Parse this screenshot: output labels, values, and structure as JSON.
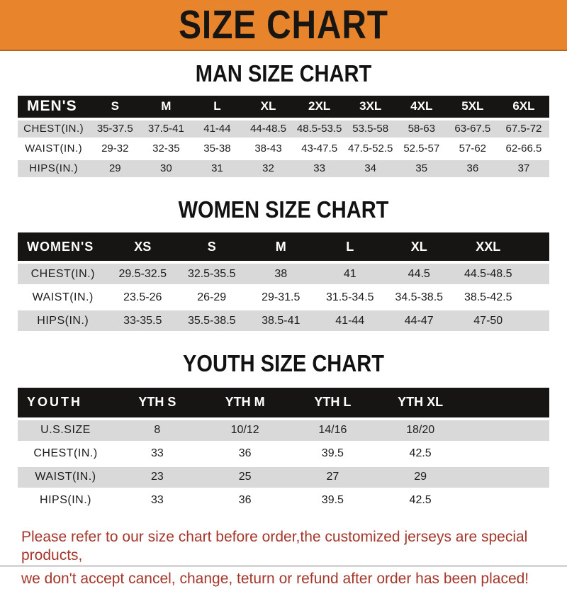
{
  "banner": {
    "title": "SIZE CHART",
    "bg_color": "#E8842C",
    "text_color": "#181613"
  },
  "sections": [
    {
      "title": "MAN SIZE CHART",
      "table": {
        "header_label": "MEN'S",
        "columns": [
          "S",
          "M",
          "L",
          "XL",
          "2XL",
          "3XL",
          "4XL",
          "5XL",
          "6XL"
        ],
        "rows": [
          {
            "label": "CHEST(IN.)",
            "values": [
              "35-37.5",
              "37.5-41",
              "41-44",
              "44-48.5",
              "48.5-53.5",
              "53.5-58",
              "58-63",
              "63-67.5",
              "67.5-72"
            ]
          },
          {
            "label": "WAIST(IN.)",
            "values": [
              "29-32",
              "32-35",
              "35-38",
              "38-43",
              "43-47.5",
              "47.5-52.5",
              "52.5-57",
              "57-62",
              "62-66.5"
            ]
          },
          {
            "label": "HIPS(IN.)",
            "values": [
              "29",
              "30",
              "31",
              "32",
              "33",
              "34",
              "35",
              "36",
              "37"
            ]
          }
        ]
      }
    },
    {
      "title": "WOMEN SIZE CHART",
      "table": {
        "header_label": "WOMEN'S",
        "columns": [
          "XS",
          "S",
          "M",
          "L",
          "XL",
          "XXL"
        ],
        "rows": [
          {
            "label": "CHEST(IN.)",
            "values": [
              "29.5-32.5",
              "32.5-35.5",
              "38",
              "41",
              "44.5",
              "44.5-48.5"
            ]
          },
          {
            "label": "WAIST(IN.)",
            "values": [
              "23.5-26",
              "26-29",
              "29-31.5",
              "31.5-34.5",
              "34.5-38.5",
              "38.5-42.5"
            ]
          },
          {
            "label": "HIPS(IN.)",
            "values": [
              "33-35.5",
              "35.5-38.5",
              "38.5-41",
              "41-44",
              "44-47",
              "47-50"
            ]
          }
        ]
      }
    },
    {
      "title": "YOUTH SIZE CHART",
      "table": {
        "header_label": "YOUTH",
        "columns": [
          "YTH S",
          "YTH M",
          "YTH L",
          "YTH XL"
        ],
        "rows": [
          {
            "label": "U.S.SIZE",
            "values": [
              "8",
              "10/12",
              "14/16",
              "18/20"
            ]
          },
          {
            "label": "CHEST(IN.)",
            "values": [
              "33",
              "36",
              "39.5",
              "42.5"
            ]
          },
          {
            "label": "WAIST(IN.)",
            "values": [
              "23",
              "25",
              "27",
              "29"
            ]
          },
          {
            "label": "HIPS(IN.)",
            "values": [
              "33",
              "36",
              "39.5",
              "42.5"
            ]
          }
        ]
      }
    }
  ],
  "footer": {
    "lines": [
      "Please refer to our size chart before order,the customized jerseys are special products,",
      "we don't accept cancel, change, teturn or refund after order has been placed!"
    ],
    "text_color": "#A5362C"
  }
}
